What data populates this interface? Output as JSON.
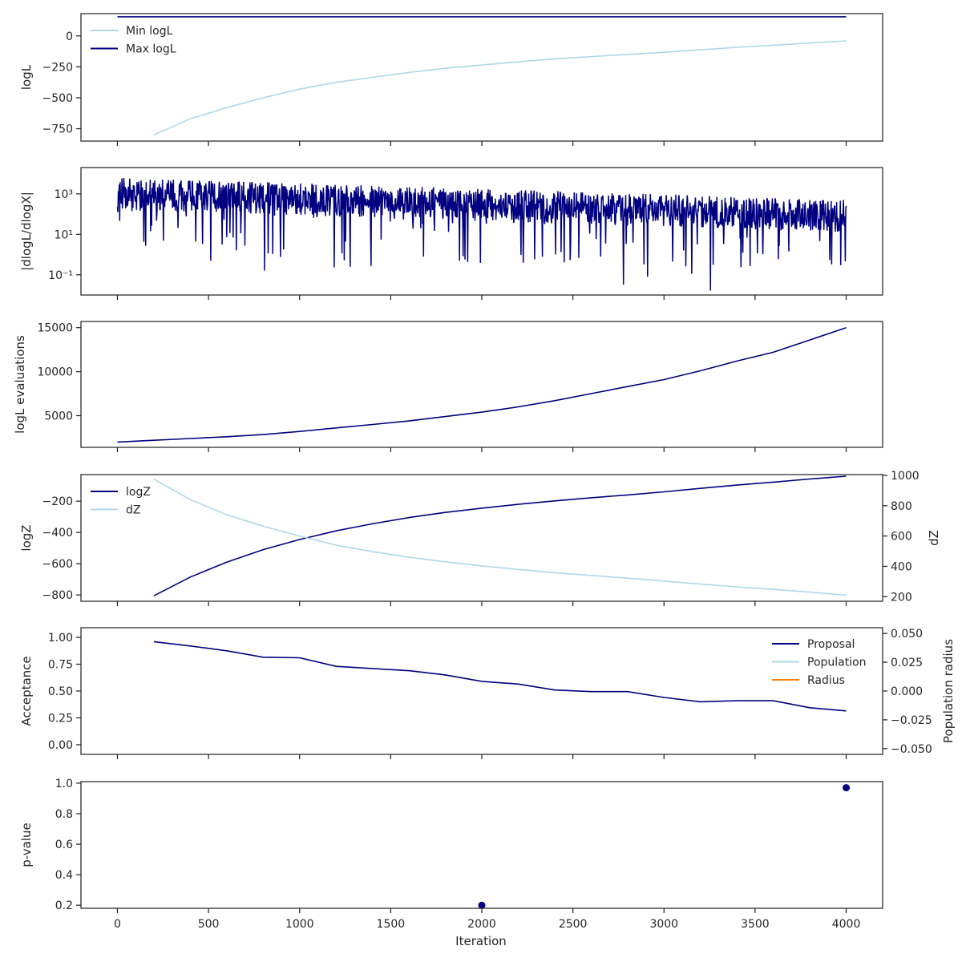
{
  "colors": {
    "navy": "#000080",
    "lightblue": "#add8e6",
    "orange": "#ff7f0e",
    "axis": "#262626"
  },
  "xaxis": {
    "label": "Iteration",
    "range": [
      -200,
      4200
    ],
    "ticks": [
      0,
      500,
      1000,
      1500,
      2000,
      2500,
      3000,
      3500,
      4000
    ],
    "tick_labels": [
      "0",
      "500",
      "1000",
      "1500",
      "2000",
      "2500",
      "3000",
      "3500",
      "4000"
    ]
  },
  "chart_data": [
    {
      "type": "line",
      "ylabel": "logL",
      "ylim": [
        -850,
        180
      ],
      "yticks": [
        0,
        -250,
        -500,
        -750
      ],
      "ytick_labels": [
        "0",
        "−250",
        "−500",
        "−750"
      ],
      "legend": "upper left",
      "series": [
        {
          "name": "Min logL",
          "color": "lightblue",
          "x": [
            200,
            400,
            600,
            800,
            1000,
            1200,
            1400,
            1600,
            1800,
            2000,
            2200,
            2400,
            2600,
            2800,
            3000,
            3200,
            3400,
            3600,
            3800,
            4000
          ],
          "y": [
            -800,
            -670,
            -580,
            -500,
            -430,
            -375,
            -335,
            -295,
            -262,
            -235,
            -210,
            -185,
            -168,
            -150,
            -132,
            -112,
            -92,
            -75,
            -57,
            -40
          ]
        },
        {
          "name": "Max logL",
          "color": "navy",
          "x": [
            0,
            4000
          ],
          "y": [
            155,
            155
          ]
        }
      ]
    },
    {
      "type": "line",
      "ylabel": "|dlogL/dlogX|",
      "yscale": "log",
      "ylim": [
        0.01,
        20000
      ],
      "yticks": [
        0.1,
        10,
        1000
      ],
      "ytick_labels": [
        "10⁻¹",
        "10¹",
        "10³"
      ],
      "series": [
        {
          "name": "",
          "color": "navy",
          "kind": "noisy-decay",
          "x": [
            0,
            4000
          ],
          "y_typical": [
            1000,
            80
          ],
          "y_min": [
            0.01,
            0.01
          ]
        }
      ]
    },
    {
      "type": "line",
      "ylabel": "logL evaluations",
      "ylim": [
        1400,
        15700
      ],
      "yticks": [
        5000,
        10000,
        15000
      ],
      "ytick_labels": [
        "5000",
        "10000",
        "15000"
      ],
      "series": [
        {
          "name": "",
          "color": "navy",
          "x": [
            0,
            200,
            400,
            600,
            800,
            1000,
            1200,
            1400,
            1600,
            1800,
            2000,
            2200,
            2400,
            2600,
            2800,
            3000,
            3200,
            3400,
            3600,
            3800,
            4000
          ],
          "y": [
            2000,
            2200,
            2400,
            2600,
            2850,
            3200,
            3600,
            4000,
            4400,
            4900,
            5400,
            6000,
            6700,
            7500,
            8300,
            9100,
            10100,
            11200,
            12200,
            13600,
            15000
          ]
        }
      ]
    },
    {
      "type": "line",
      "ylabel": "logZ",
      "ylabel_right": "dZ",
      "ylim": [
        -840,
        -30
      ],
      "yticks": [
        -200,
        -400,
        -600,
        -800
      ],
      "ytick_labels": [
        "−200",
        "−400",
        "−600",
        "−800"
      ],
      "ylim_right": [
        170,
        1005
      ],
      "yticks_right": [
        200,
        400,
        600,
        800,
        1000
      ],
      "ytick_labels_right": [
        "200",
        "400",
        "600",
        "800",
        "1000"
      ],
      "legend": "upper left",
      "series": [
        {
          "name": "logZ",
          "color": "navy",
          "axis": "left",
          "x": [
            200,
            400,
            600,
            800,
            1000,
            1200,
            1400,
            1600,
            1800,
            2000,
            2200,
            2400,
            2600,
            2800,
            3000,
            3200,
            3400,
            3600,
            3800,
            4000
          ],
          "y": [
            -805,
            -685,
            -590,
            -510,
            -445,
            -390,
            -345,
            -305,
            -272,
            -245,
            -220,
            -198,
            -178,
            -160,
            -140,
            -118,
            -97,
            -78,
            -58,
            -40
          ]
        },
        {
          "name": "dZ",
          "color": "lightblue",
          "axis": "right",
          "x": [
            200,
            400,
            600,
            800,
            1000,
            1200,
            1400,
            1600,
            1800,
            2000,
            2200,
            2400,
            2600,
            2800,
            3000,
            3200,
            3400,
            3600,
            3800,
            4000
          ],
          "y": [
            975,
            840,
            740,
            665,
            600,
            540,
            497,
            460,
            430,
            403,
            380,
            358,
            340,
            322,
            303,
            283,
            265,
            248,
            230,
            210
          ]
        }
      ]
    },
    {
      "type": "line",
      "ylabel": "Acceptance",
      "ylabel_right": "Population radius",
      "ylim": [
        -0.09,
        1.09
      ],
      "yticks": [
        0.0,
        0.25,
        0.5,
        0.75,
        1.0
      ],
      "ytick_labels": [
        "0.00",
        "0.25",
        "0.50",
        "0.75",
        "1.00"
      ],
      "ylim_right": [
        -0.055,
        0.055
      ],
      "yticks_right": [
        -0.05,
        -0.025,
        0.0,
        0.025,
        0.05
      ],
      "ytick_labels_right": [
        "−0.050",
        "−0.025",
        "0.000",
        "0.025",
        "0.050"
      ],
      "legend": "upper right",
      "series": [
        {
          "name": "Proposal",
          "color": "navy",
          "x": [
            200,
            400,
            600,
            800,
            1000,
            1200,
            1400,
            1600,
            1800,
            2000,
            2200,
            2400,
            2600,
            2800,
            3000,
            3200,
            3400,
            3600,
            3800,
            4000
          ],
          "y": [
            0.96,
            0.92,
            0.875,
            0.815,
            0.81,
            0.73,
            0.71,
            0.69,
            0.65,
            0.59,
            0.565,
            0.51,
            0.495,
            0.495,
            0.44,
            0.4,
            0.41,
            0.41,
            0.345,
            0.315
          ]
        },
        {
          "name": "Population",
          "color": "lightblue",
          "x": [],
          "y": []
        },
        {
          "name": "Radius",
          "color": "orange",
          "x": [],
          "y": []
        }
      ]
    },
    {
      "type": "scatter",
      "ylabel": "p-value",
      "ylim": [
        0.18,
        1.01
      ],
      "yticks": [
        0.2,
        0.4,
        0.6,
        0.8,
        1.0
      ],
      "ytick_labels": [
        "0.2",
        "0.4",
        "0.6",
        "0.8",
        "1.0"
      ],
      "series": [
        {
          "name": "",
          "color": "navy",
          "x": [
            2000,
            4000
          ],
          "y": [
            0.2,
            0.97
          ]
        }
      ]
    }
  ]
}
